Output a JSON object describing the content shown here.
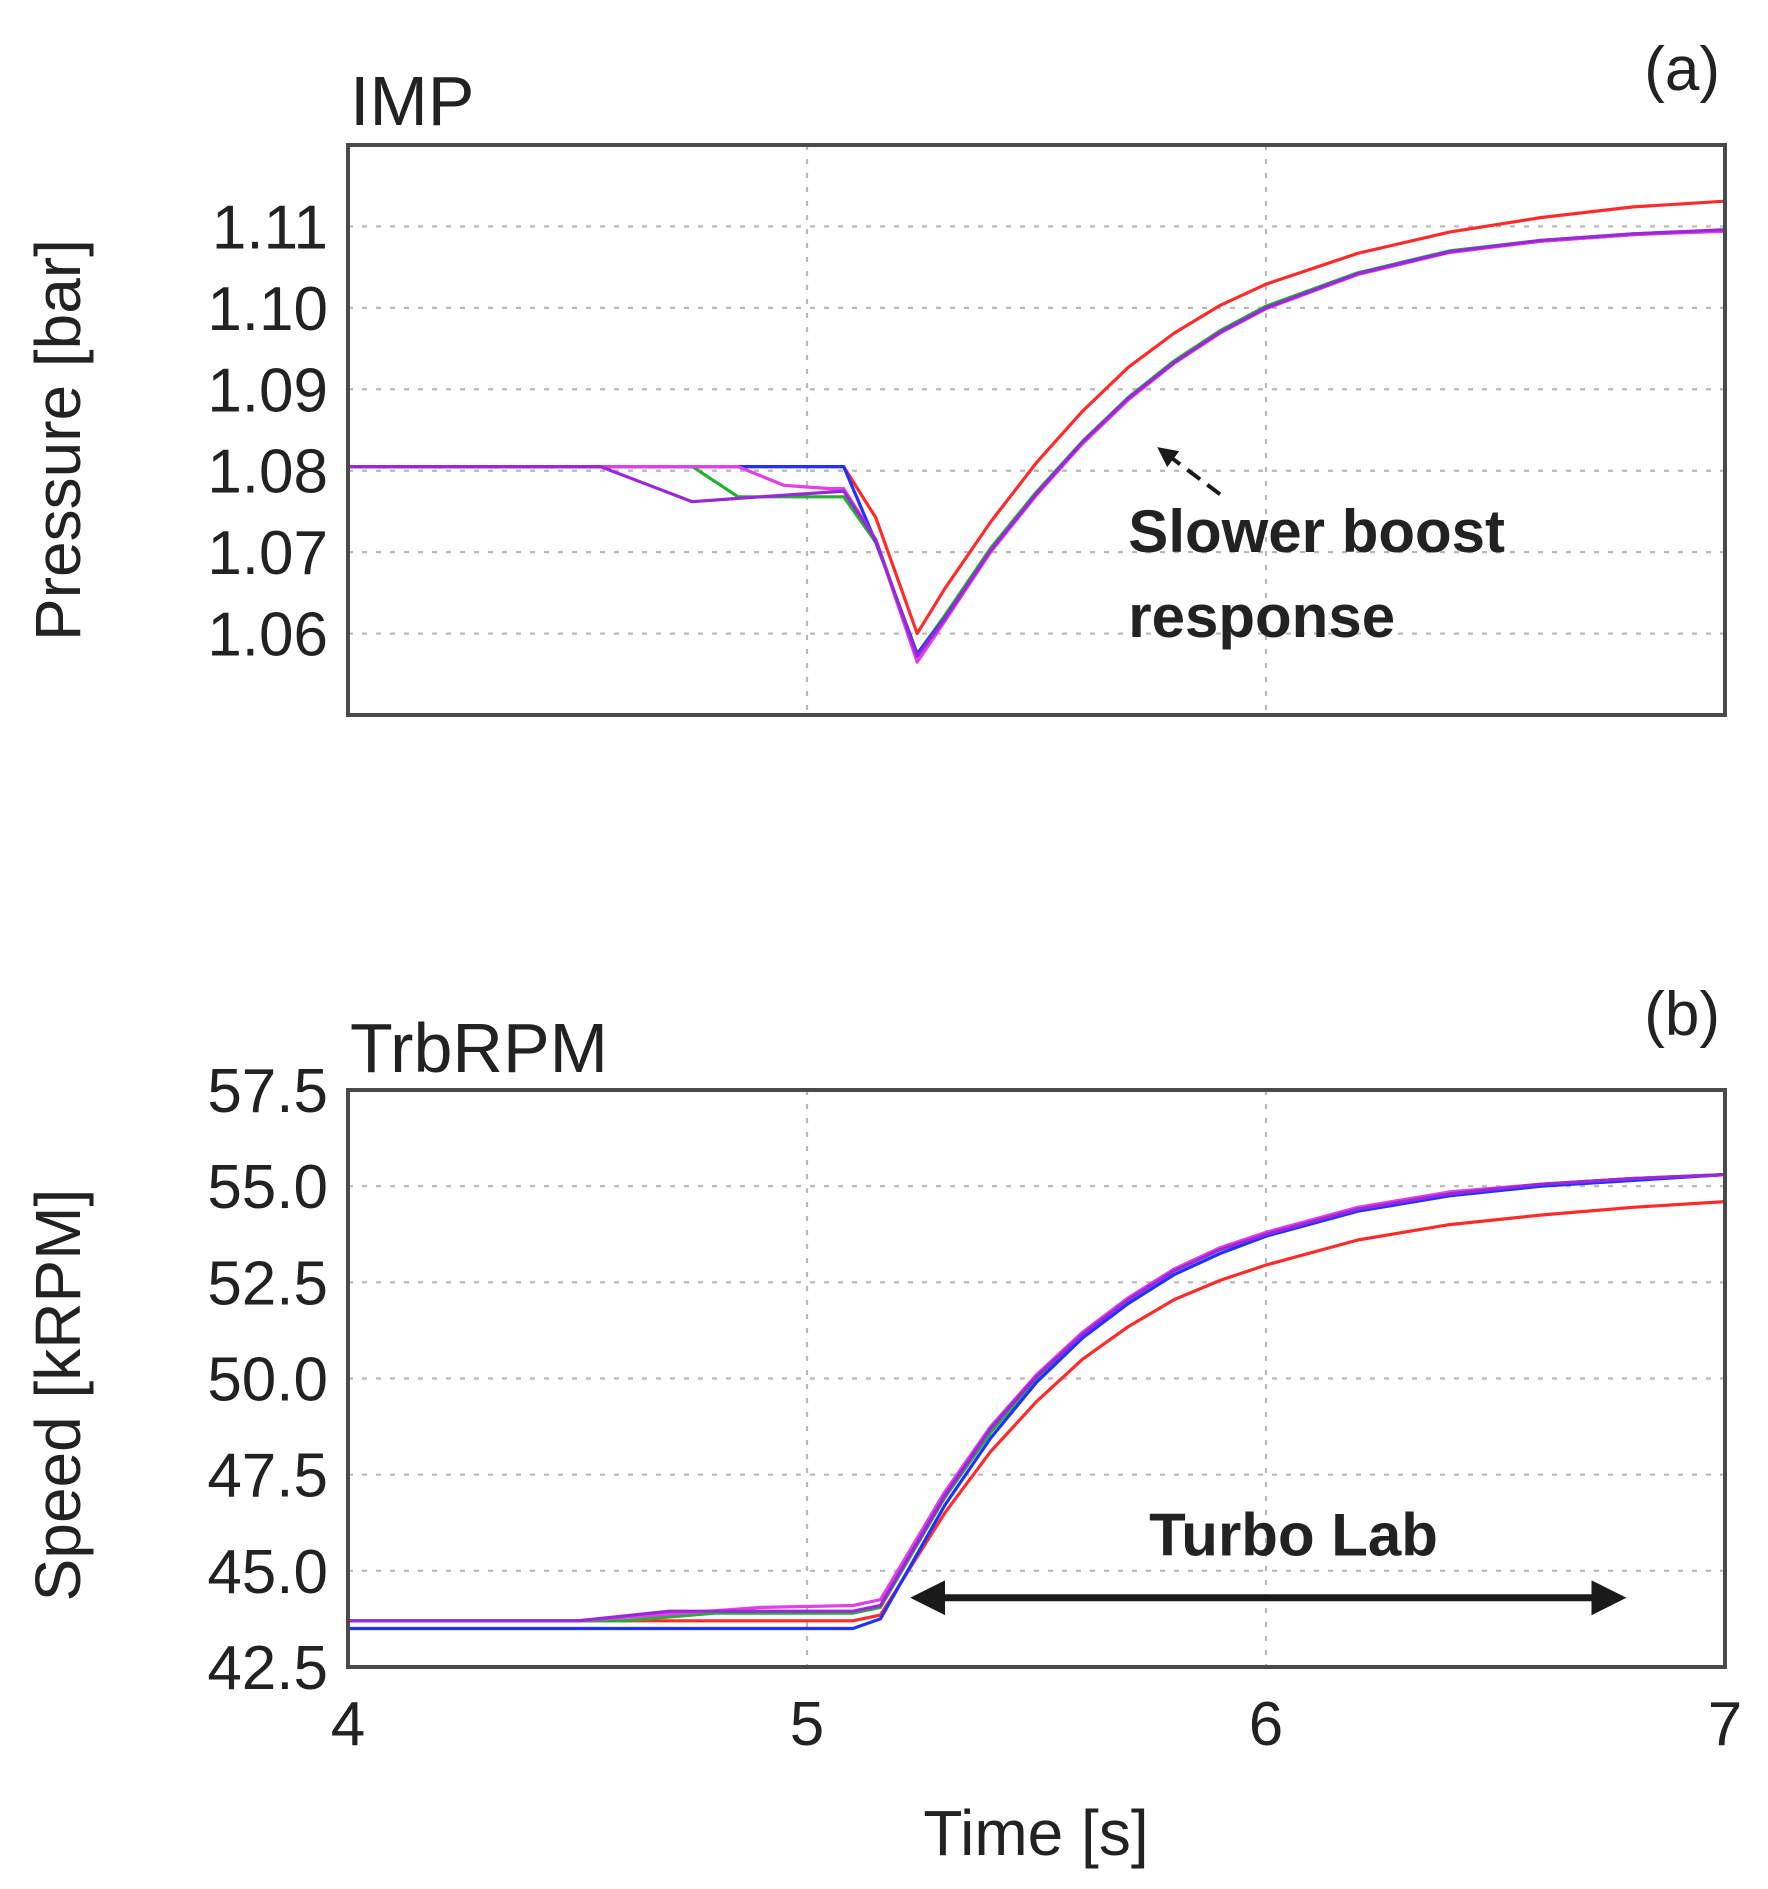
{
  "chart_data": [
    {
      "type": "line",
      "panel_id": "a",
      "panel_label": "(a)",
      "title": "IMP",
      "xlabel": "",
      "ylabel": "Pressure [bar]",
      "xlim": [
        4,
        7
      ],
      "ylim": [
        1.05,
        1.12
      ],
      "yticks": [
        1.06,
        1.07,
        1.08,
        1.09,
        1.1,
        1.11
      ],
      "ytick_labels": [
        "1.06",
        "1.07",
        "1.08",
        "1.09",
        "1.10",
        "1.11"
      ],
      "xticks": [
        5,
        6
      ],
      "grid": true,
      "annotation": {
        "lines": [
          "Slower boost",
          "response"
        ],
        "arrow": "dashed",
        "arrow_from": [
          5.9,
          1.0771
        ],
        "arrow_to": [
          5.77,
          1.0826
        ],
        "text_pos": [
          5.7,
          1.07
        ]
      },
      "series": [
        {
          "name": "red",
          "color": "#ff2a2a",
          "x": [
            4.0,
            5.05,
            5.08,
            5.15,
            5.24,
            5.3,
            5.4,
            5.5,
            5.6,
            5.7,
            5.8,
            5.9,
            6.0,
            6.2,
            6.4,
            6.6,
            6.8,
            7.0
          ],
          "y": [
            1.0805,
            1.0805,
            1.0805,
            1.0742,
            1.06,
            1.0655,
            1.0737,
            1.081,
            1.0873,
            1.0927,
            1.0969,
            1.1003,
            1.1029,
            1.1067,
            1.1093,
            1.1111,
            1.1124,
            1.1131
          ]
        },
        {
          "name": "green",
          "color": "#22b030",
          "x": [
            4.0,
            4.75,
            4.85,
            5.08,
            5.15,
            5.24,
            5.3,
            5.4,
            5.5,
            5.6,
            5.7,
            5.8,
            5.9,
            6.0,
            6.2,
            6.4,
            6.6,
            6.8,
            7.0
          ],
          "y": [
            1.0805,
            1.0805,
            1.0768,
            1.0768,
            1.0712,
            1.0575,
            1.0622,
            1.0705,
            1.0774,
            1.0836,
            1.089,
            1.0935,
            1.0972,
            1.1002,
            1.1043,
            1.107,
            1.1083,
            1.1091,
            1.1095
          ]
        },
        {
          "name": "blue",
          "color": "#2030ff",
          "x": [
            4.0,
            5.08,
            5.15,
            5.24,
            5.3,
            5.4,
            5.5,
            5.6,
            5.7,
            5.8,
            5.9,
            6.0,
            6.2,
            6.4,
            6.6,
            6.8,
            7.0
          ],
          "y": [
            1.0805,
            1.0805,
            1.0712,
            1.0575,
            1.0619,
            1.0701,
            1.0771,
            1.0834,
            1.0888,
            1.0932,
            1.097,
            1.1,
            1.1042,
            1.1069,
            1.1082,
            1.109,
            1.1095
          ]
        },
        {
          "name": "magenta",
          "color": "#e040e8",
          "x": [
            4.0,
            4.85,
            4.95,
            5.05,
            5.08,
            5.15,
            5.24,
            5.3,
            5.4,
            5.5,
            5.6,
            5.7,
            5.8,
            5.9,
            6.0,
            6.2,
            6.4,
            6.6,
            6.8,
            7.0
          ],
          "y": [
            1.0805,
            1.0805,
            1.0782,
            1.0778,
            1.0778,
            1.0715,
            1.0565,
            1.0615,
            1.07,
            1.077,
            1.0833,
            1.0887,
            1.0932,
            1.0969,
            1.0999,
            1.1041,
            1.1068,
            1.1082,
            1.109,
            1.1094
          ]
        },
        {
          "name": "purple",
          "color": "#9a28d8",
          "x": [
            4.0,
            4.55,
            4.75,
            4.85,
            5.08,
            5.15,
            5.24,
            5.3,
            5.4,
            5.5,
            5.6,
            5.7,
            5.8,
            5.9,
            6.0,
            6.2,
            6.4,
            6.6,
            6.8,
            7.0
          ],
          "y": [
            1.0805,
            1.0805,
            1.0762,
            1.0766,
            1.0775,
            1.0715,
            1.0572,
            1.0618,
            1.0702,
            1.0772,
            1.0835,
            1.0889,
            1.0933,
            1.097,
            1.1,
            1.1042,
            1.1069,
            1.1083,
            1.1091,
            1.1096
          ]
        }
      ]
    },
    {
      "type": "line",
      "panel_id": "b",
      "panel_label": "(b)",
      "title": "TrbRPM",
      "xlabel": "Time [s]",
      "ylabel": "Speed [kRPM]",
      "xlim": [
        4,
        7
      ],
      "ylim": [
        42.5,
        57.5
      ],
      "yticks": [
        42.5,
        45.0,
        47.5,
        50.0,
        52.5,
        55.0,
        57.5
      ],
      "ytick_labels": [
        "42.5",
        "45.0",
        "47.5",
        "50.0",
        "52.5",
        "55.0",
        "57.5"
      ],
      "xticks": [
        4,
        5,
        6,
        7
      ],
      "xtick_labels": [
        "4",
        "5",
        "6",
        "7"
      ],
      "grid": true,
      "annotation": {
        "text": "Turbo Lab",
        "arrow": "double",
        "arrow_from": [
          5.24,
          44.3
        ],
        "arrow_to": [
          6.77,
          44.3
        ],
        "text_pos": [
          6.06,
          45.4
        ]
      },
      "series": [
        {
          "name": "red",
          "color": "#ff2a2a",
          "x": [
            4.0,
            4.5,
            5.1,
            5.16,
            5.3,
            5.4,
            5.5,
            5.6,
            5.7,
            5.8,
            5.9,
            6.0,
            6.2,
            6.4,
            6.6,
            6.8,
            7.0
          ],
          "y": [
            43.7,
            43.7,
            43.7,
            43.85,
            46.5,
            48.1,
            49.4,
            50.5,
            51.35,
            52.05,
            52.55,
            52.95,
            53.6,
            54.0,
            54.25,
            54.45,
            54.6
          ]
        },
        {
          "name": "green",
          "color": "#22b030",
          "x": [
            4.0,
            4.6,
            4.8,
            5.1,
            5.16,
            5.3,
            5.4,
            5.5,
            5.6,
            5.7,
            5.8,
            5.9,
            6.0,
            6.2,
            6.4,
            6.6,
            6.8,
            7.0
          ],
          "y": [
            43.7,
            43.7,
            43.9,
            43.9,
            44.05,
            46.9,
            48.6,
            50.0,
            51.15,
            52.05,
            52.8,
            53.35,
            53.75,
            54.4,
            54.8,
            55.05,
            55.2,
            55.3
          ]
        },
        {
          "name": "blue",
          "color": "#2030ff",
          "x": [
            4.0,
            5.1,
            5.16,
            5.3,
            5.4,
            5.5,
            5.6,
            5.7,
            5.8,
            5.9,
            6.0,
            6.2,
            6.4,
            6.6,
            6.8,
            7.0
          ],
          "y": [
            43.5,
            43.5,
            43.75,
            46.7,
            48.45,
            49.9,
            51.05,
            51.95,
            52.7,
            53.25,
            53.7,
            54.35,
            54.75,
            55.0,
            55.15,
            55.3
          ]
        },
        {
          "name": "magenta",
          "color": "#e040e8",
          "x": [
            4.0,
            4.5,
            4.9,
            5.1,
            5.16,
            5.3,
            5.4,
            5.5,
            5.6,
            5.7,
            5.8,
            5.9,
            6.0,
            6.2,
            6.4,
            6.6,
            6.8,
            7.0
          ],
          "y": [
            43.7,
            43.7,
            44.05,
            44.1,
            44.25,
            47.05,
            48.75,
            50.1,
            51.2,
            52.1,
            52.85,
            53.4,
            53.8,
            54.45,
            54.85,
            55.05,
            55.2,
            55.3
          ]
        },
        {
          "name": "purple",
          "color": "#9a28d8",
          "x": [
            4.0,
            4.5,
            4.7,
            5.1,
            5.16,
            5.3,
            5.4,
            5.5,
            5.6,
            5.7,
            5.8,
            5.9,
            6.0,
            6.2,
            6.4,
            6.6,
            6.8,
            7.0
          ],
          "y": [
            43.7,
            43.7,
            43.95,
            43.95,
            44.1,
            46.95,
            48.7,
            50.05,
            51.15,
            52.05,
            52.8,
            53.35,
            53.75,
            54.4,
            54.8,
            55.05,
            55.2,
            55.3
          ]
        }
      ]
    }
  ]
}
